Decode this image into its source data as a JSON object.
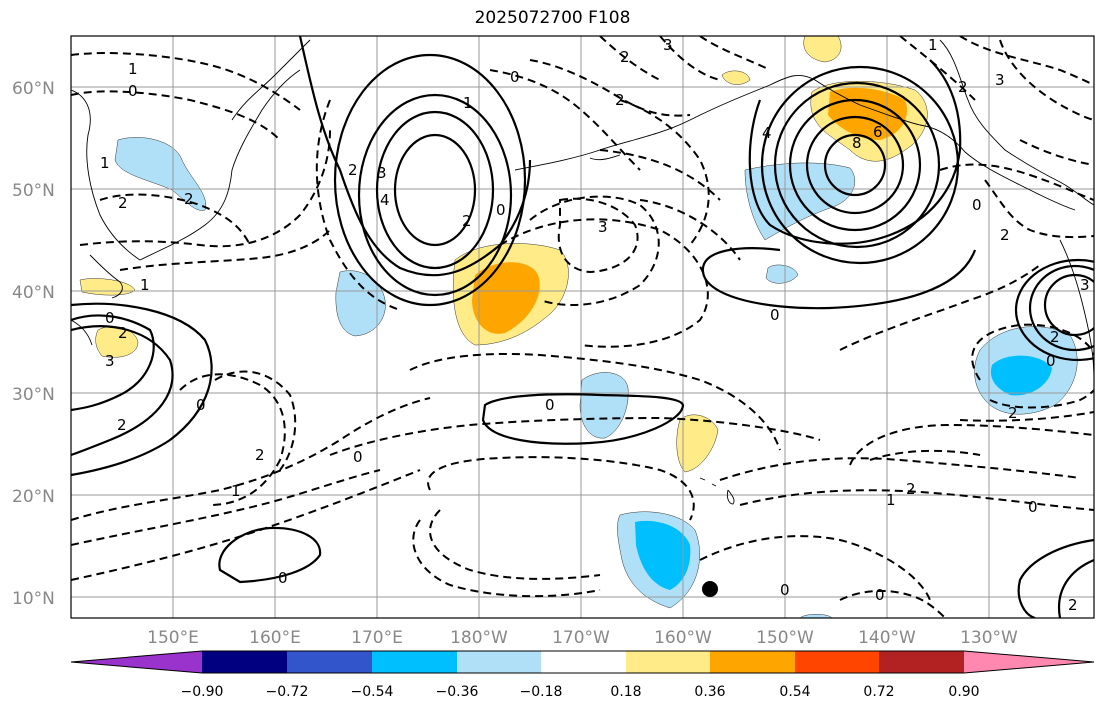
{
  "title": "2025072700 F108",
  "axes": {
    "lat_labels": [
      "60°N",
      "50°N",
      "40°N",
      "30°N",
      "20°N",
      "10°N"
    ],
    "lon_labels": [
      "150°E",
      "160°E",
      "170°E",
      "180°W",
      "170°W",
      "160°W",
      "150°W",
      "140°W",
      "130°W"
    ]
  },
  "colorbar": {
    "ticks": [
      "−0.90",
      "−0.72",
      "−0.54",
      "−0.36",
      "−0.18",
      "0.18",
      "0.36",
      "0.54",
      "0.72",
      "0.90"
    ],
    "colors": [
      "#9933cc",
      "#000080",
      "#3355cc",
      "#00bfff",
      "#b0e0f8",
      "#ffffff",
      "#ffeb88",
      "#ffa500",
      "#ff4500",
      "#b22222",
      "#ff88b0"
    ]
  },
  "contour_labels": [
    "1",
    "0",
    "1",
    "2",
    "0",
    "1",
    "2",
    "3",
    "2",
    "2",
    "0",
    "1",
    "2",
    "3",
    "4",
    "2",
    "2",
    "3",
    "0",
    "0",
    "4",
    "6",
    "8",
    "0",
    "1",
    "2",
    "3",
    "2",
    "3",
    "1",
    "0",
    "2",
    "3",
    "2",
    "0",
    "0",
    "2",
    "0",
    "2",
    "1",
    "2",
    "0",
    "0",
    "0",
    "0",
    "2"
  ],
  "marker": "station-dot"
}
